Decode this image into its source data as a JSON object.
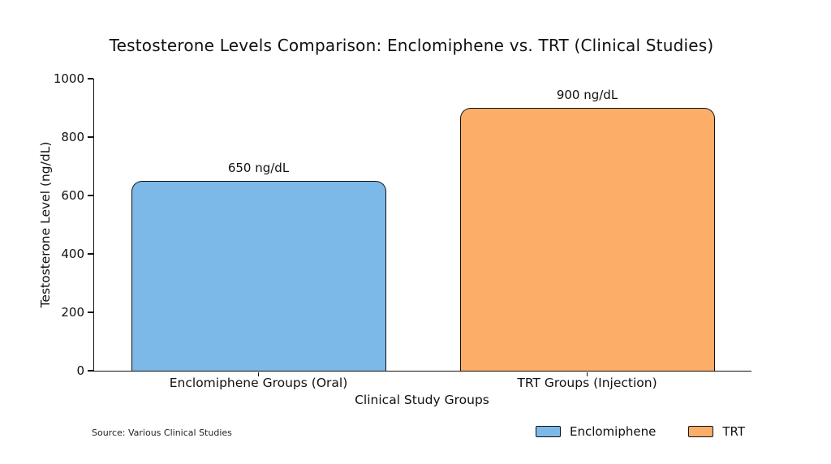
{
  "source_note": "Source: Various Clinical Studies",
  "chart_data": {
    "type": "bar",
    "title": "Testosterone Levels Comparison: Enclomiphene vs. TRT (Clinical Studies)",
    "xlabel": "Clinical Study Groups",
    "ylabel": "Testosterone Level (ng/dL)",
    "categories": [
      "Enclomiphene Groups (Oral)",
      "TRT Groups (Injection)"
    ],
    "values": [
      650,
      900
    ],
    "bar_labels": [
      "650 ng/dL",
      "900 ng/dL"
    ],
    "bar_colors": [
      "#7DB9E8",
      "#FCAE69"
    ],
    "ylim": [
      0,
      1000
    ],
    "yticks": [
      0,
      200,
      400,
      600,
      800,
      1000
    ],
    "grid": false,
    "legend": {
      "position": "bottom-right",
      "entries": [
        {
          "label": "Enclomiphene",
          "color": "#7DB9E8"
        },
        {
          "label": "TRT",
          "color": "#FCAE69"
        }
      ]
    }
  }
}
